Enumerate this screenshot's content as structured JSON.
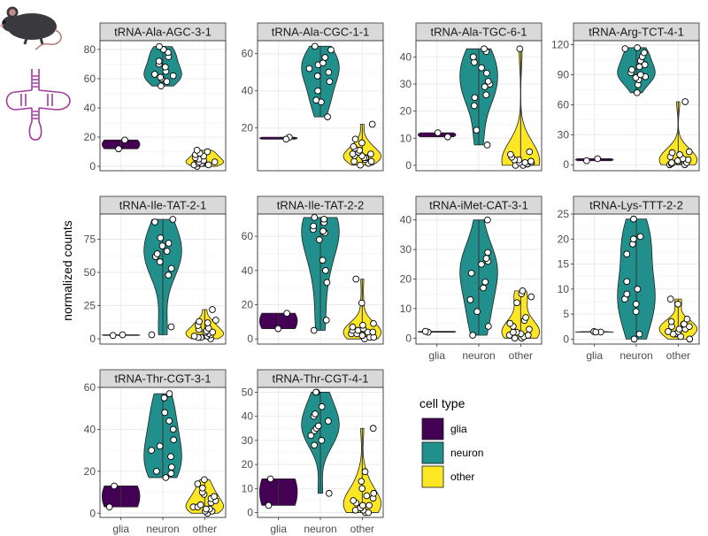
{
  "chart_data": {
    "type": "violin",
    "ylabel": "normalized counts",
    "xlabel": "",
    "categories": [
      "glia",
      "neuron",
      "other"
    ],
    "legend": {
      "title": "cell type",
      "position": "right",
      "entries": [
        {
          "label": "glia",
          "color": "#440154"
        },
        {
          "label": "neuron",
          "color": "#21908C"
        },
        {
          "label": "other",
          "color": "#FDE725"
        }
      ]
    },
    "panels": [
      {
        "title": "tRNA-Ala-AGC-3-1",
        "ylim": [
          -3,
          86
        ],
        "yticks": [
          0,
          20,
          40,
          60,
          80
        ],
        "groups": {
          "glia": [
            18,
            12
          ],
          "neuron": [
            55,
            58,
            60,
            61,
            62,
            63,
            65,
            68,
            70,
            72,
            75,
            78,
            80,
            82
          ],
          "other": [
            0,
            1,
            1,
            2,
            2,
            3,
            3,
            4,
            5,
            5,
            6,
            7,
            8,
            9,
            10,
            11
          ]
        }
      },
      {
        "title": "tRNA-Ala-CGC-1-1",
        "ylim": [
          -3,
          67
        ],
        "yticks": [
          20,
          40,
          60
        ],
        "groups": {
          "glia": [
            15,
            14
          ],
          "neuron": [
            26,
            34,
            35,
            40,
            45,
            48,
            50,
            52,
            54,
            55,
            58,
            62,
            64
          ],
          "other": [
            0,
            1,
            2,
            2,
            3,
            4,
            4,
            5,
            5,
            6,
            6,
            7,
            8,
            9,
            10,
            12,
            14,
            22
          ]
        }
      },
      {
        "title": "tRNA-Ala-TGC-6-1",
        "ylim": [
          -2,
          46
        ],
        "yticks": [
          0,
          10,
          20,
          30,
          40
        ],
        "groups": {
          "glia": [
            12,
            10.5
          ],
          "neuron": [
            7.5,
            13,
            22,
            25,
            26,
            29,
            30,
            31,
            34,
            36,
            38,
            40,
            42,
            43
          ],
          "other": [
            0,
            0,
            0.5,
            0.5,
            1,
            1,
            1,
            1.5,
            2,
            2,
            3,
            4,
            5,
            43
          ]
        }
      },
      {
        "title": "tRNA-Arg-TCT-4-1",
        "ylim": [
          -6,
          124
        ],
        "yticks": [
          0,
          30,
          60,
          90,
          120
        ],
        "groups": {
          "glia": [
            6,
            4
          ],
          "neuron": [
            72,
            80,
            85,
            87,
            88,
            90,
            92,
            95,
            98,
            100,
            104,
            108,
            112,
            116,
            117
          ],
          "other": [
            0,
            0,
            1,
            2,
            2,
            3,
            4,
            5,
            6,
            8,
            10,
            12,
            13,
            63
          ]
        }
      },
      {
        "title": "tRNA-Ile-TAT-2-1",
        "ylim": [
          -4,
          94
        ],
        "yticks": [
          0,
          25,
          50,
          75
        ],
        "groups": {
          "glia": [
            3,
            2.5
          ],
          "neuron": [
            3,
            9,
            48,
            53,
            58,
            62,
            64,
            66,
            70,
            72,
            76,
            88,
            90
          ],
          "other": [
            0,
            1,
            1,
            2,
            2,
            3,
            4,
            5,
            5,
            6,
            7,
            8,
            10,
            12,
            13,
            14,
            22
          ]
        }
      },
      {
        "title": "tRNA-Ile-TAT-2-2",
        "ylim": [
          -3,
          73
        ],
        "yticks": [
          0,
          20,
          40,
          60
        ],
        "groups": {
          "glia": [
            15,
            6
          ],
          "neuron": [
            5,
            11,
            33,
            40,
            46,
            58,
            62,
            63,
            64,
            66,
            68,
            70,
            71
          ],
          "other": [
            0,
            1,
            1,
            2,
            2,
            3,
            3,
            4,
            4,
            5,
            5,
            6,
            7,
            8,
            9,
            21,
            35
          ]
        }
      },
      {
        "title": "tRNA-iMet-CAT-3-1",
        "ylim": [
          -2,
          42
        ],
        "yticks": [
          0,
          10,
          20,
          30,
          40
        ],
        "groups": {
          "glia": [
            2,
            2.3
          ],
          "neuron": [
            1,
            4,
            9,
            13,
            17,
            19,
            22,
            25,
            26,
            27,
            29,
            40
          ],
          "other": [
            0,
            0,
            0.5,
            1,
            1,
            1.5,
            2,
            2,
            3,
            4,
            5,
            6,
            7,
            12,
            14,
            15,
            16
          ]
        }
      },
      {
        "title": "tRNA-Lys-TTT-2-2",
        "ylim": [
          -1,
          25
        ],
        "yticks": [
          0,
          5,
          10,
          15,
          20,
          25
        ],
        "groups": {
          "glia": [
            1.5,
            1.4,
            1.4
          ],
          "neuron": [
            0,
            1,
            5.5,
            7,
            8,
            9,
            10,
            11.5,
            17,
            19,
            20,
            20.5,
            24
          ],
          "other": [
            0,
            0.5,
            1,
            1,
            1.5,
            1.5,
            2,
            2,
            2.5,
            2.5,
            3,
            3,
            3.5,
            4,
            7,
            8
          ]
        }
      },
      {
        "title": "tRNA-Thr-CGT-3-1",
        "ylim": [
          -2,
          60
        ],
        "yticks": [
          0,
          20,
          40,
          60
        ],
        "groups": {
          "glia": [
            13,
            3
          ],
          "neuron": [
            17,
            19,
            20,
            22,
            27,
            30,
            32,
            35,
            40,
            44,
            48,
            55,
            57
          ],
          "other": [
            0,
            1,
            1,
            2,
            2,
            3,
            3,
            4,
            5,
            6,
            7,
            8,
            9,
            10,
            12,
            14,
            16
          ]
        }
      },
      {
        "title": "tRNA-Thr-CGT-4-1",
        "ylim": [
          -2,
          52
        ],
        "yticks": [
          0,
          10,
          20,
          30,
          40,
          50
        ],
        "groups": {
          "glia": [
            14,
            3
          ],
          "neuron": [
            8,
            28,
            30,
            32,
            34,
            35,
            36,
            38,
            40,
            41,
            44,
            50,
            50
          ],
          "other": [
            0,
            0,
            1,
            1,
            2,
            2,
            3,
            3,
            4,
            5,
            6,
            7,
            8,
            10,
            13,
            17,
            35
          ]
        }
      }
    ]
  }
}
